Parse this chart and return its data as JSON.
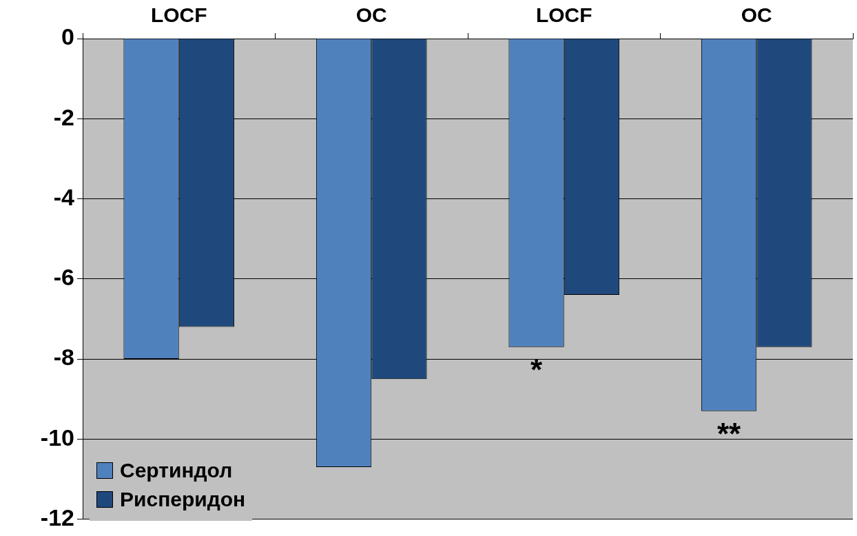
{
  "chart_data": {
    "type": "bar",
    "categories": [
      "LOCF",
      "OC",
      "LOCF",
      "OC"
    ],
    "series": [
      {
        "name": "Сертиндол",
        "color": "#4f81bd",
        "values": [
          -8.0,
          -10.7,
          -7.7,
          -9.3
        ]
      },
      {
        "name": "Рисперидон",
        "color": "#1f497d",
        "values": [
          -7.2,
          -8.5,
          -6.4,
          -7.7
        ]
      }
    ],
    "ylim": [
      -12,
      0
    ],
    "yticks": [
      0,
      -2,
      -4,
      -6,
      -8,
      -10,
      -12
    ],
    "grid": "y",
    "legend": "bottom left",
    "annotations": [
      "*",
      "**"
    ]
  }
}
